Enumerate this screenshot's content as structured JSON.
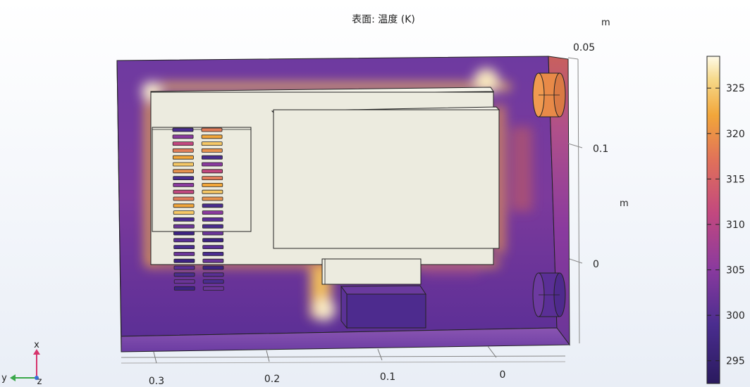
{
  "plot": {
    "title": "表面: 温度 (K)"
  },
  "axes": {
    "x_ticks": [
      "0.3",
      "0.2",
      "0.1",
      "0"
    ],
    "z_ticks": [
      "0.05",
      "0.1",
      "0"
    ],
    "unit_top": "m",
    "unit_mid": "m"
  },
  "colorbar": {
    "ticks": [
      "325",
      "320",
      "315",
      "310",
      "305",
      "300",
      "295"
    ],
    "colormap": "thermal",
    "range_K": [
      292.5,
      328.5
    ]
  },
  "triad": {
    "x": "x",
    "y": "y",
    "z": "z"
  },
  "colors": {
    "cold": "#3b1f78",
    "mid": "#9b3b9c",
    "warm": "#d96a5a",
    "hot": "#f4b83a",
    "hottest": "#fffbe6",
    "component": "#ecebdf"
  },
  "vents": {
    "left_column_count": 24,
    "right_column_count": 24
  }
}
